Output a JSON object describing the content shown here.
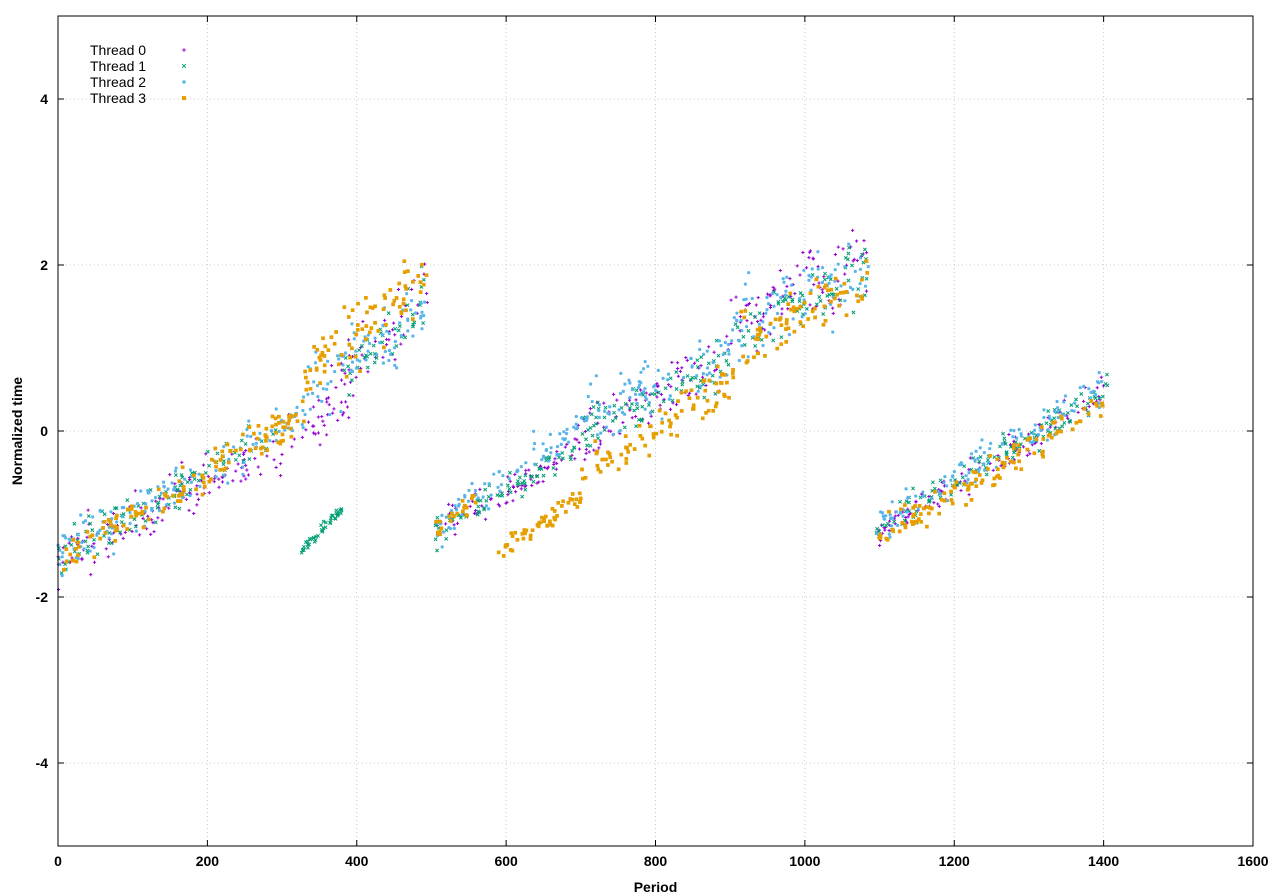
{
  "chart_data": {
    "type": "scatter",
    "title": "",
    "xlabel": "Period",
    "ylabel": "Normalized time",
    "xlim": [
      0,
      1600
    ],
    "ylim": [
      -5,
      5
    ],
    "xticks": [
      0,
      200,
      400,
      600,
      800,
      1000,
      1200,
      1400,
      1600
    ],
    "yticks": [
      -4,
      -2,
      0,
      2,
      4
    ],
    "grid": true,
    "legend_position": "top-left",
    "series": [
      {
        "name": "Thread 0",
        "color": "#9400d3",
        "marker": "plus",
        "segments": [
          {
            "x_start": 0,
            "x_end": 330,
            "y_start": -1.6,
            "y_end": 0.0,
            "spread": 0.55,
            "count": 130
          },
          {
            "x_start": 330,
            "x_end": 495,
            "y_start": 0.0,
            "y_end": 1.6,
            "spread": 0.85,
            "count": 75
          },
          {
            "x_start": 505,
            "x_end": 690,
            "y_start": -1.2,
            "y_end": -0.3,
            "spread": 0.35,
            "count": 70
          },
          {
            "x_start": 690,
            "x_end": 900,
            "y_start": -0.1,
            "y_end": 0.9,
            "spread": 0.7,
            "count": 90
          },
          {
            "x_start": 900,
            "x_end": 1085,
            "y_start": 1.2,
            "y_end": 2.2,
            "spread": 0.85,
            "count": 85
          },
          {
            "x_start": 1095,
            "x_end": 1405,
            "y_start": -1.25,
            "y_end": 0.5,
            "spread": 0.35,
            "count": 120
          }
        ]
      },
      {
        "name": "Thread 1",
        "color": "#009e73",
        "marker": "cross",
        "segments": [
          {
            "x_start": 0,
            "x_end": 300,
            "y_start": -1.55,
            "y_end": 0.1,
            "spread": 0.45,
            "count": 110
          },
          {
            "x_start": 325,
            "x_end": 380,
            "y_start": -1.45,
            "y_end": -0.95,
            "spread": 0.12,
            "count": 45
          },
          {
            "x_start": 380,
            "x_end": 495,
            "y_start": 0.6,
            "y_end": 1.6,
            "spread": 0.6,
            "count": 45
          },
          {
            "x_start": 505,
            "x_end": 700,
            "y_start": -1.2,
            "y_end": -0.2,
            "spread": 0.3,
            "count": 75
          },
          {
            "x_start": 700,
            "x_end": 900,
            "y_start": 0.0,
            "y_end": 0.8,
            "spread": 0.55,
            "count": 80
          },
          {
            "x_start": 900,
            "x_end": 1085,
            "y_start": 1.1,
            "y_end": 2.0,
            "spread": 0.7,
            "count": 70
          },
          {
            "x_start": 1095,
            "x_end": 1405,
            "y_start": -1.2,
            "y_end": 0.5,
            "spread": 0.35,
            "count": 120
          }
        ]
      },
      {
        "name": "Thread 2",
        "color": "#56b4e9",
        "marker": "star",
        "segments": [
          {
            "x_start": 0,
            "x_end": 330,
            "y_start": -1.5,
            "y_end": 0.2,
            "spread": 0.45,
            "count": 130
          },
          {
            "x_start": 330,
            "x_end": 495,
            "y_start": 0.4,
            "y_end": 1.5,
            "spread": 0.8,
            "count": 80
          },
          {
            "x_start": 505,
            "x_end": 700,
            "y_start": -1.2,
            "y_end": 0.1,
            "spread": 0.4,
            "count": 80
          },
          {
            "x_start": 700,
            "x_end": 900,
            "y_start": 0.1,
            "y_end": 0.9,
            "spread": 0.65,
            "count": 90
          },
          {
            "x_start": 900,
            "x_end": 1085,
            "y_start": 1.2,
            "y_end": 2.0,
            "spread": 0.85,
            "count": 85
          },
          {
            "x_start": 1095,
            "x_end": 1405,
            "y_start": -1.15,
            "y_end": 0.55,
            "spread": 0.4,
            "count": 120
          }
        ]
      },
      {
        "name": "Thread 3",
        "color": "#e69f00",
        "marker": "square",
        "segments": [
          {
            "x_start": 0,
            "x_end": 330,
            "y_start": -1.55,
            "y_end": 0.2,
            "spread": 0.4,
            "count": 130
          },
          {
            "x_start": 330,
            "x_end": 495,
            "y_start": 0.6,
            "y_end": 1.9,
            "spread": 0.7,
            "count": 80
          },
          {
            "x_start": 505,
            "x_end": 560,
            "y_start": -1.2,
            "y_end": -0.8,
            "spread": 0.2,
            "count": 25
          },
          {
            "x_start": 590,
            "x_end": 700,
            "y_start": -1.45,
            "y_end": -0.8,
            "spread": 0.2,
            "count": 55
          },
          {
            "x_start": 700,
            "x_end": 900,
            "y_start": -0.5,
            "y_end": 0.6,
            "spread": 0.5,
            "count": 80
          },
          {
            "x_start": 900,
            "x_end": 1085,
            "y_start": 0.9,
            "y_end": 1.8,
            "spread": 0.75,
            "count": 75
          },
          {
            "x_start": 1095,
            "x_end": 1405,
            "y_start": -1.3,
            "y_end": 0.35,
            "spread": 0.35,
            "count": 120
          }
        ]
      }
    ]
  }
}
